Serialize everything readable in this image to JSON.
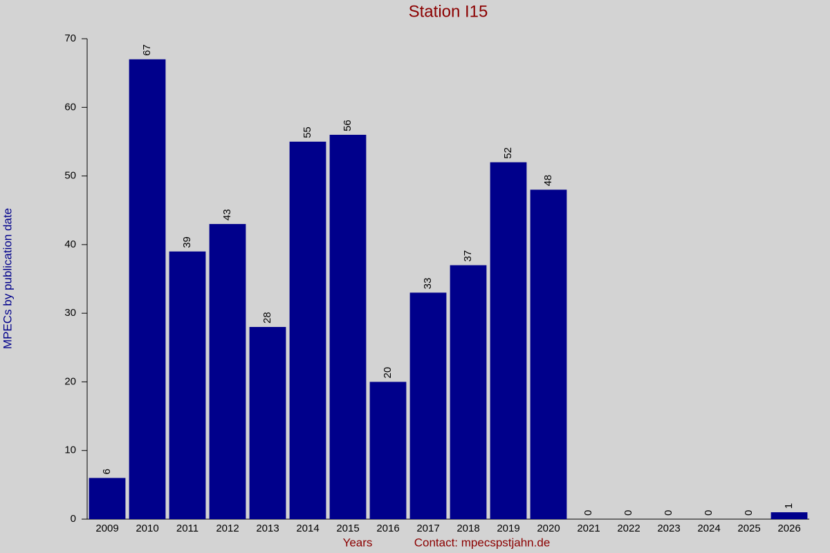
{
  "chart_data": {
    "type": "bar",
    "title": "Station I15",
    "y_label": "MPECs by publication date",
    "x_label": "Years",
    "note": "Contact: mpecspstjahn.de",
    "categories": [
      "2009",
      "2010",
      "2011",
      "2012",
      "2013",
      "2014",
      "2015",
      "2016",
      "2017",
      "2018",
      "2019",
      "2020",
      "2021",
      "2022",
      "2023",
      "2024",
      "2025",
      "2026"
    ],
    "values": [
      6,
      67,
      39,
      43,
      28,
      55,
      56,
      20,
      33,
      37,
      52,
      48,
      0,
      0,
      0,
      0,
      0,
      1
    ],
    "color": "#00008b",
    "ylim": [
      0,
      70
    ],
    "yticks": [
      0,
      10,
      20,
      30,
      40,
      50,
      60,
      70
    ],
    "grid": false
  }
}
